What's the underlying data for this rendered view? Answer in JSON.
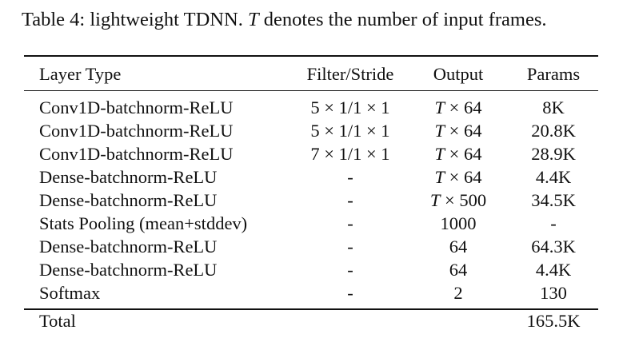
{
  "caption": {
    "prefix": "Table 4:  lightweight TDNN. ",
    "var": "T",
    "suffix": " denotes the number of input frames."
  },
  "table": {
    "headers": [
      "Layer Type",
      "Filter/Stride",
      "Output",
      "Params"
    ],
    "rows": [
      {
        "layer": "Conv1D-batchnorm-ReLU",
        "filter": "5 × 1/1 × 1",
        "output": "T × 64",
        "params": "8K"
      },
      {
        "layer": "Conv1D-batchnorm-ReLU",
        "filter": "5 × 1/1 × 1",
        "output": "T × 64",
        "params": "20.8K"
      },
      {
        "layer": "Conv1D-batchnorm-ReLU",
        "filter": "7 × 1/1 × 1",
        "output": "T × 64",
        "params": "28.9K"
      },
      {
        "layer": "Dense-batchnorm-ReLU",
        "filter": "-",
        "output": "T × 64",
        "params": "4.4K"
      },
      {
        "layer": "Dense-batchnorm-ReLU",
        "filter": "-",
        "output": "T × 500",
        "params": "34.5K"
      },
      {
        "layer": "Stats Pooling (mean+stddev)",
        "filter": "-",
        "output": "1000",
        "params": "-"
      },
      {
        "layer": "Dense-batchnorm-ReLU",
        "filter": "-",
        "output": "64",
        "params": "64.3K"
      },
      {
        "layer": "Dense-batchnorm-ReLU",
        "filter": "-",
        "output": "64",
        "params": "4.4K"
      },
      {
        "layer": "Softmax",
        "filter": "-",
        "output": "2",
        "params": "130"
      }
    ],
    "total": {
      "label": "Total",
      "params": "165.5K"
    }
  }
}
